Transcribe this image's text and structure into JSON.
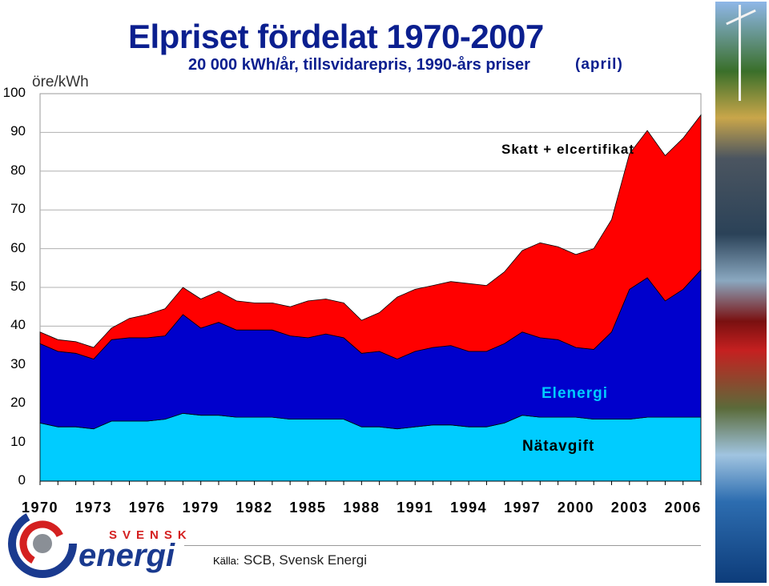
{
  "title": "Elpriset fördelat 1970-2007",
  "subtitle": "20 000 kWh/år, tillsvidarepris, 1990-års priser",
  "subtitle_note": "(april)",
  "source_label": "Källa:",
  "source_text": "SCB, Svensk Energi",
  "logo": {
    "word_top": "SVENSK",
    "word_main": "energi"
  },
  "colors": {
    "natavgift": "#00ccff",
    "elenergi": "#0000cc",
    "skatt": "#ff0000",
    "title": "#0b1f8f"
  },
  "chart_data": {
    "type": "area",
    "stacked": true,
    "title": "Elpriset fördelat 1970-2007",
    "subtitle": "20 000 kWh/år, tillsvidarepris, 1990-års priser (april)",
    "ylabel": "öre/kWh",
    "xlabel": "",
    "ylim": [
      0,
      100
    ],
    "yticks": [
      "0",
      "10",
      "20",
      "30",
      "40",
      "50",
      "60",
      "70",
      "80",
      "90",
      "100"
    ],
    "xtick_labels": [
      "1970",
      "1973",
      "1976",
      "1979",
      "1982",
      "1985",
      "1988",
      "1991",
      "1994",
      "1997",
      "2000",
      "2003",
      "2006"
    ],
    "grid": "horizontal",
    "x": [
      1970,
      1971,
      1972,
      1973,
      1974,
      1975,
      1976,
      1977,
      1978,
      1979,
      1980,
      1981,
      1982,
      1983,
      1984,
      1985,
      1986,
      1987,
      1988,
      1989,
      1990,
      1991,
      1992,
      1993,
      1994,
      1995,
      1996,
      1997,
      1998,
      1999,
      2000,
      2001,
      2002,
      2003,
      2004,
      2005,
      2006,
      2007
    ],
    "series": [
      {
        "name": "Nätavgift",
        "label": "Nätavgift",
        "values": [
          15,
          14,
          14,
          13.5,
          15.5,
          15.5,
          15.5,
          16,
          17.5,
          17,
          17,
          16.5,
          16.5,
          16.5,
          16,
          16,
          16,
          16,
          14,
          14,
          13.5,
          14,
          14.5,
          14.5,
          14,
          14,
          15,
          17,
          16.5,
          16.5,
          16.5,
          16,
          16,
          16,
          16.5,
          16.5,
          16.5,
          16.5
        ]
      },
      {
        "name": "Elenergi",
        "label": "Elenergi",
        "values": [
          20.5,
          19.5,
          19,
          18,
          21,
          21.5,
          21.5,
          21.5,
          25.5,
          22.5,
          24,
          22.5,
          22.5,
          22.5,
          21.5,
          21,
          22,
          21,
          19,
          19.5,
          18,
          19.5,
          20,
          20.5,
          19.5,
          19.5,
          20.5,
          21.5,
          20.5,
          20,
          18,
          18,
          22.5,
          33.5,
          36,
          30,
          33,
          38
        ]
      },
      {
        "name": "Skatt + elcertifikat",
        "label": "Skatt + elcertifikat",
        "values": [
          3,
          3,
          3,
          3,
          3,
          5,
          6,
          7,
          7,
          7.5,
          8,
          7.5,
          7,
          7,
          7.5,
          9.5,
          9,
          9,
          8.5,
          10,
          16,
          16,
          16,
          16.5,
          17.5,
          17,
          18.5,
          21,
          24.5,
          24,
          24,
          26,
          29,
          35,
          38,
          37.5,
          39,
          40
        ]
      }
    ],
    "annotations": [
      "Skatt + elcertifikat",
      "Elenergi",
      "Nätavgift"
    ]
  }
}
